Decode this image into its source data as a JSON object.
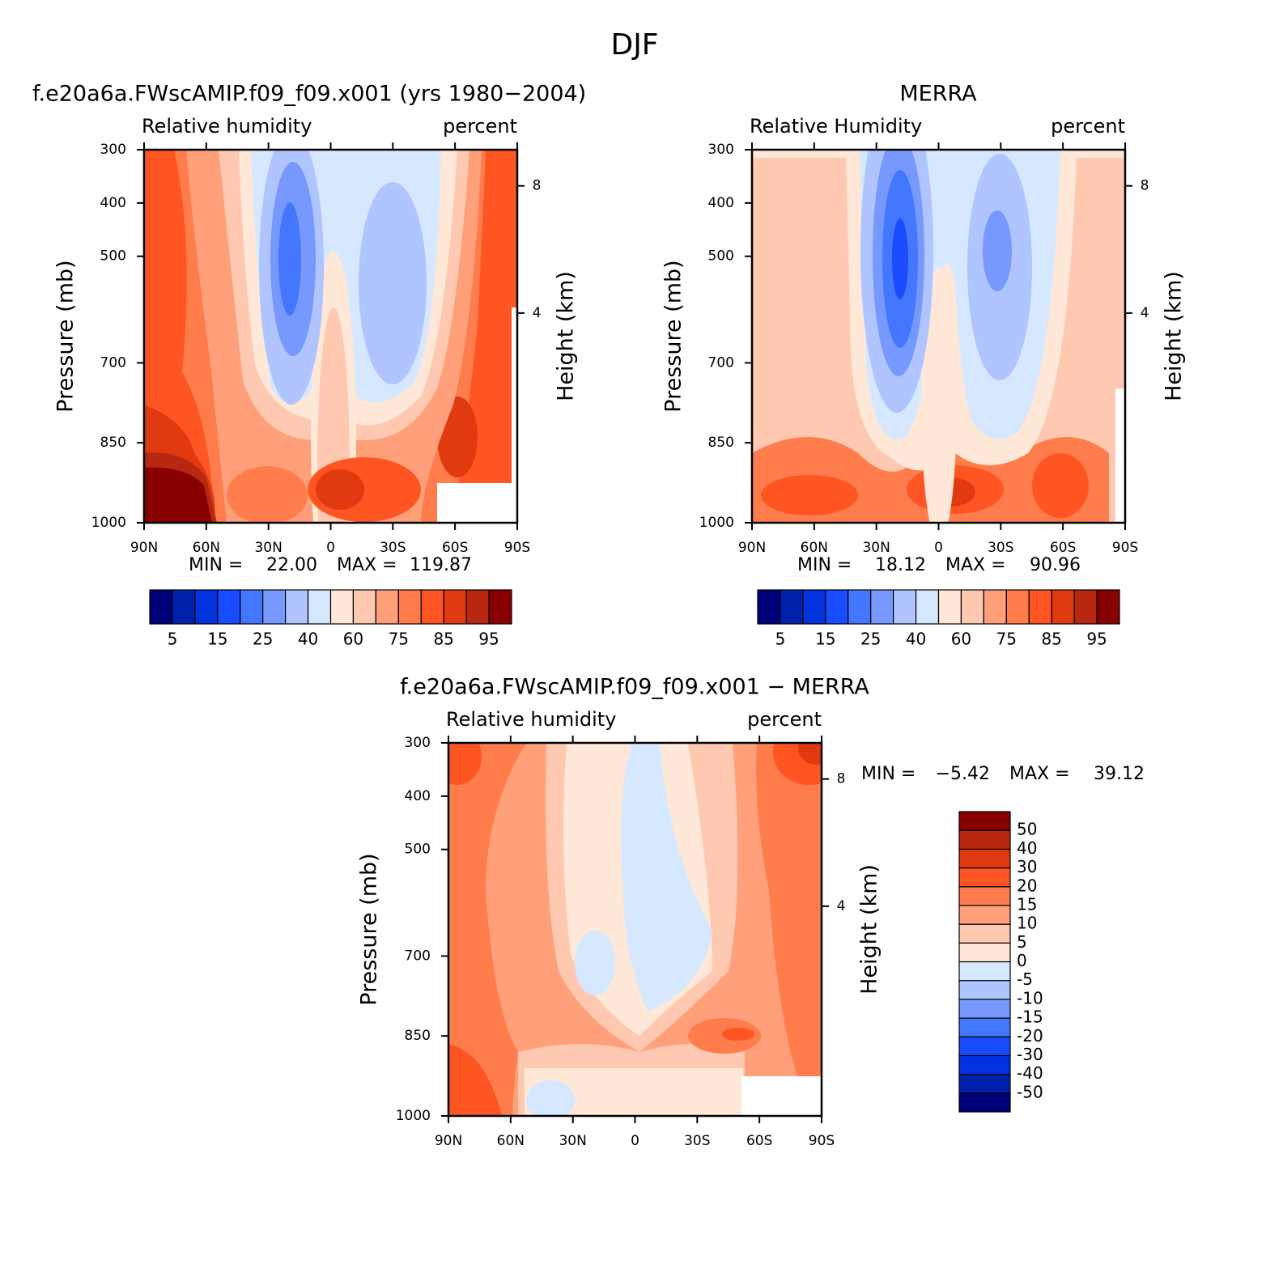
{
  "title": "DJF",
  "chart_data": [
    {
      "type": "contour",
      "title": "f.e20a6a.FWscAMIP.f09_f09.x001 (yrs 1980−2004)",
      "left_string": "Relative humidity",
      "right_string": "percent",
      "ylabel": "Pressure (mb)",
      "y2label": "Height (km)",
      "ylim": [
        1000,
        300
      ],
      "yticks": [
        300,
        400,
        500,
        700,
        850,
        1000
      ],
      "y2ticks": [
        4,
        8
      ],
      "xlim": [
        90,
        -90
      ],
      "xticks": [
        {
          "value": 90,
          "label": "90N"
        },
        {
          "value": 60,
          "label": "60N"
        },
        {
          "value": 30,
          "label": "30N"
        },
        0,
        {
          "value": -30,
          "label": "30S"
        },
        {
          "value": -60,
          "label": "60S"
        },
        {
          "value": -90,
          "label": "90S"
        }
      ],
      "min_text": "MIN =",
      "min": {
        "value": 22,
        "label": "22.00"
      },
      "max_text": "MAX =",
      "max": 119.87,
      "colorbar": {
        "orientation": "horizontal",
        "levels": [
          5,
          null,
          15,
          null,
          25,
          null,
          40,
          null,
          60,
          null,
          75,
          null,
          85,
          null,
          95
        ],
        "colors": [
          "#00007a",
          "#0022aa",
          "#0033dd",
          "#1a4cff",
          "#4477ff",
          "#7799ff",
          "#b0c4ff",
          "#d6e8ff",
          "#ffe8d8",
          "#ffc8b0",
          "#ffa07a",
          "#ff7d4d",
          "#ff5522",
          "#e03a10",
          "#b82810",
          "#880000"
        ]
      }
    },
    {
      "type": "contour",
      "title": "MERRA",
      "left_string": "Relative Humidity",
      "right_string": "percent",
      "ylabel": "Pressure (mb)",
      "y2label": "Height (km)",
      "ylim": [
        1000,
        300
      ],
      "yticks": [
        300,
        400,
        500,
        700,
        850,
        1000
      ],
      "y2ticks": [
        4,
        8
      ],
      "xlim": [
        90,
        -90
      ],
      "xticks": [
        {
          "value": 90,
          "label": "90N"
        },
        {
          "value": 60,
          "label": "60N"
        },
        {
          "value": 30,
          "label": "30N"
        },
        0,
        {
          "value": -30,
          "label": "30S"
        },
        {
          "value": -60,
          "label": "60S"
        },
        {
          "value": -90,
          "label": "90S"
        }
      ],
      "min_text": "MIN =",
      "min": 18.12,
      "max_text": "MAX =",
      "max": 90.96,
      "colorbar": {
        "orientation": "horizontal",
        "levels": [
          5,
          null,
          15,
          null,
          25,
          null,
          40,
          null,
          60,
          null,
          75,
          null,
          85,
          null,
          95
        ],
        "colors": [
          "#00007a",
          "#0022aa",
          "#0033dd",
          "#1a4cff",
          "#4477ff",
          "#7799ff",
          "#b0c4ff",
          "#d6e8ff",
          "#ffe8d8",
          "#ffc8b0",
          "#ffa07a",
          "#ff7d4d",
          "#ff5522",
          "#e03a10",
          "#b82810",
          "#880000"
        ]
      }
    },
    {
      "type": "contour",
      "title": "f.e20a6a.FWscAMIP.f09_f09.x001 − MERRA",
      "left_string": "Relative humidity",
      "right_string": "percent",
      "ylabel": "Pressure (mb)",
      "y2label": "Height (km)",
      "ylim": [
        1000,
        300
      ],
      "yticks": [
        300,
        400,
        500,
        700,
        850,
        1000
      ],
      "y2ticks": [
        4,
        8
      ],
      "xlim": [
        90,
        -90
      ],
      "xticks": [
        {
          "value": 90,
          "label": "90N"
        },
        {
          "value": 60,
          "label": "60N"
        },
        {
          "value": 30,
          "label": "30N"
        },
        0,
        {
          "value": -30,
          "label": "30S"
        },
        {
          "value": -60,
          "label": "60S"
        },
        {
          "value": -90,
          "label": "90S"
        }
      ],
      "min_text": "MIN =",
      "min": {
        "value": -5.42,
        "label": "−5.42"
      },
      "max_text": "MAX =",
      "max": 39.12,
      "colorbar": {
        "orientation": "vertical",
        "levels": [
          -50,
          -40,
          -30,
          -20,
          -15,
          -10,
          -5,
          0,
          5,
          10,
          15,
          20,
          30,
          40,
          50
        ],
        "colors": [
          "#00007a",
          "#0022aa",
          "#0033dd",
          "#1a4cff",
          "#4477ff",
          "#7799ff",
          "#b0c4ff",
          "#d6e8ff",
          "#ffe8d8",
          "#ffc8b0",
          "#ffa07a",
          "#ff7d4d",
          "#ff5522",
          "#e03a10",
          "#b82810",
          "#880000"
        ]
      }
    }
  ]
}
